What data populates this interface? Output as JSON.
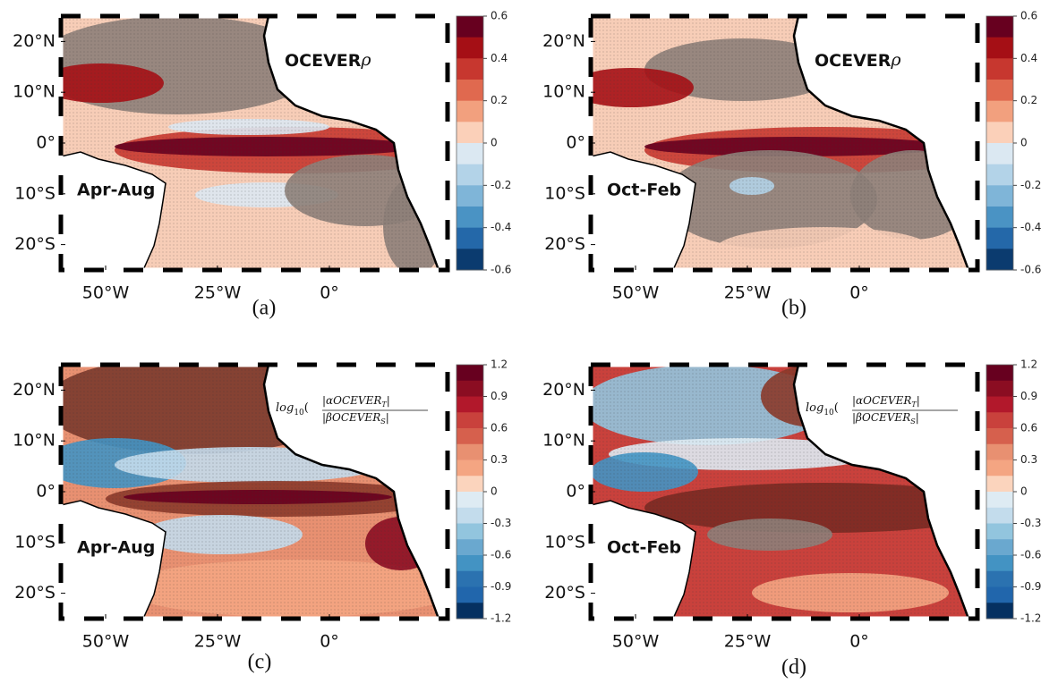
{
  "panels": [
    {
      "label": "(a)",
      "season": "Apr-Aug",
      "annotation": {
        "name": "OCEVER",
        "symbol": "ρ"
      },
      "xlim": [
        -60,
        26.4
      ],
      "ylim": [
        -25,
        25
      ],
      "xticks": [
        {
          "value": -50,
          "label": "50°W"
        },
        {
          "value": -25,
          "label": "25°W"
        },
        {
          "value": 0,
          "label": "0°"
        }
      ],
      "yticks": [
        {
          "value": 20,
          "label": "20°N"
        },
        {
          "value": 10,
          "label": "10°N"
        },
        {
          "value": 0,
          "label": "0°"
        },
        {
          "value": -10,
          "label": "10°S"
        },
        {
          "value": -20,
          "label": "20°S"
        }
      ],
      "colorbar": {
        "lim": [
          -0.6,
          0.6
        ],
        "ticks": [
          0.6,
          0.4,
          0.2,
          0,
          -0.2,
          -0.4,
          -0.6
        ],
        "colors": [
          "#67001f",
          "#a50f15",
          "#c7372f",
          "#e0694f",
          "#f2a07e",
          "#fbd0b9",
          "#dbe8f2",
          "#b3d3e8",
          "#7fb5d8",
          "#4a93c4",
          "#2468a9",
          "#0b3b6f"
        ]
      }
    },
    {
      "label": "(b)",
      "season": "Oct-Feb",
      "annotation": {
        "name": "OCEVER",
        "symbol": "ρ"
      },
      "xlim": [
        -60,
        26.4
      ],
      "ylim": [
        -25,
        25
      ],
      "xticks": [
        {
          "value": -50,
          "label": "50°W"
        },
        {
          "value": -25,
          "label": "25°W"
        },
        {
          "value": 0,
          "label": "0°"
        }
      ],
      "yticks": [
        {
          "value": 20,
          "label": "20°N"
        },
        {
          "value": 10,
          "label": "10°N"
        },
        {
          "value": 0,
          "label": "0°"
        },
        {
          "value": -10,
          "label": "10°S"
        },
        {
          "value": -20,
          "label": "20°S"
        }
      ],
      "colorbar": {
        "lim": [
          -0.6,
          0.6
        ],
        "ticks": [
          0.6,
          0.4,
          0.2,
          0,
          -0.2,
          -0.4,
          -0.6
        ],
        "colors": [
          "#67001f",
          "#a50f15",
          "#c7372f",
          "#e0694f",
          "#f2a07e",
          "#fbd0b9",
          "#dbe8f2",
          "#b3d3e8",
          "#7fb5d8",
          "#4a93c4",
          "#2468a9",
          "#0b3b6f"
        ]
      }
    },
    {
      "label": "(c)",
      "season": "Apr-Aug",
      "annotation": {
        "func": "log",
        "base": "10",
        "numerator": "αOCEVER",
        "num_sub": "T",
        "denominator": "βOCEVER",
        "den_sub": "S"
      },
      "xlim": [
        -60,
        26.4
      ],
      "ylim": [
        -25,
        25
      ],
      "xticks": [
        {
          "value": -50,
          "label": "50°W"
        },
        {
          "value": -25,
          "label": "25°W"
        },
        {
          "value": 0,
          "label": "0°"
        }
      ],
      "yticks": [
        {
          "value": 20,
          "label": "20°N"
        },
        {
          "value": 10,
          "label": "10°N"
        },
        {
          "value": 0,
          "label": "0°"
        },
        {
          "value": -10,
          "label": "10°S"
        },
        {
          "value": -20,
          "label": "20°S"
        }
      ],
      "colorbar": {
        "lim": [
          -1.2,
          1.2
        ],
        "ticks": [
          1.2,
          0.9,
          0.6,
          0.3,
          0,
          -0.3,
          -0.6,
          -0.9,
          -1.2
        ],
        "colors": [
          "#67001f",
          "#8b0d22",
          "#b2182b",
          "#c9413c",
          "#d6604d",
          "#e89071",
          "#f4a582",
          "#fbd4bd",
          "#deebf3",
          "#c3dcec",
          "#92c5de",
          "#6aa8cf",
          "#4393c3",
          "#2b72b0",
          "#2166ac",
          "#053061"
        ]
      }
    },
    {
      "label": "(d)",
      "season": "Oct-Feb",
      "annotation": {
        "func": "log",
        "base": "10",
        "numerator": "αOCEVER",
        "num_sub": "T",
        "denominator": "βOCEVER",
        "den_sub": "S"
      },
      "xlim": [
        -60,
        26.4
      ],
      "ylim": [
        -25,
        25
      ],
      "xticks": [
        {
          "value": -50,
          "label": "50°W"
        },
        {
          "value": -25,
          "label": "25°W"
        },
        {
          "value": 0,
          "label": "0°"
        }
      ],
      "yticks": [
        {
          "value": 20,
          "label": "20°N"
        },
        {
          "value": 10,
          "label": "10°N"
        },
        {
          "value": 0,
          "label": "0°"
        },
        {
          "value": -10,
          "label": "10°S"
        },
        {
          "value": -20,
          "label": "20°S"
        }
      ],
      "colorbar": {
        "lim": [
          -1.2,
          1.2
        ],
        "ticks": [
          1.2,
          0.9,
          0.6,
          0.3,
          0,
          -0.3,
          -0.6,
          -0.9,
          -1.2
        ],
        "colors": [
          "#67001f",
          "#8b0d22",
          "#b2182b",
          "#c9413c",
          "#d6604d",
          "#e89071",
          "#f4a582",
          "#fbd4bd",
          "#deebf3",
          "#c3dcec",
          "#92c5de",
          "#6aa8cf",
          "#4393c3",
          "#2b72b0",
          "#2166ac",
          "#053061"
        ]
      }
    }
  ]
}
